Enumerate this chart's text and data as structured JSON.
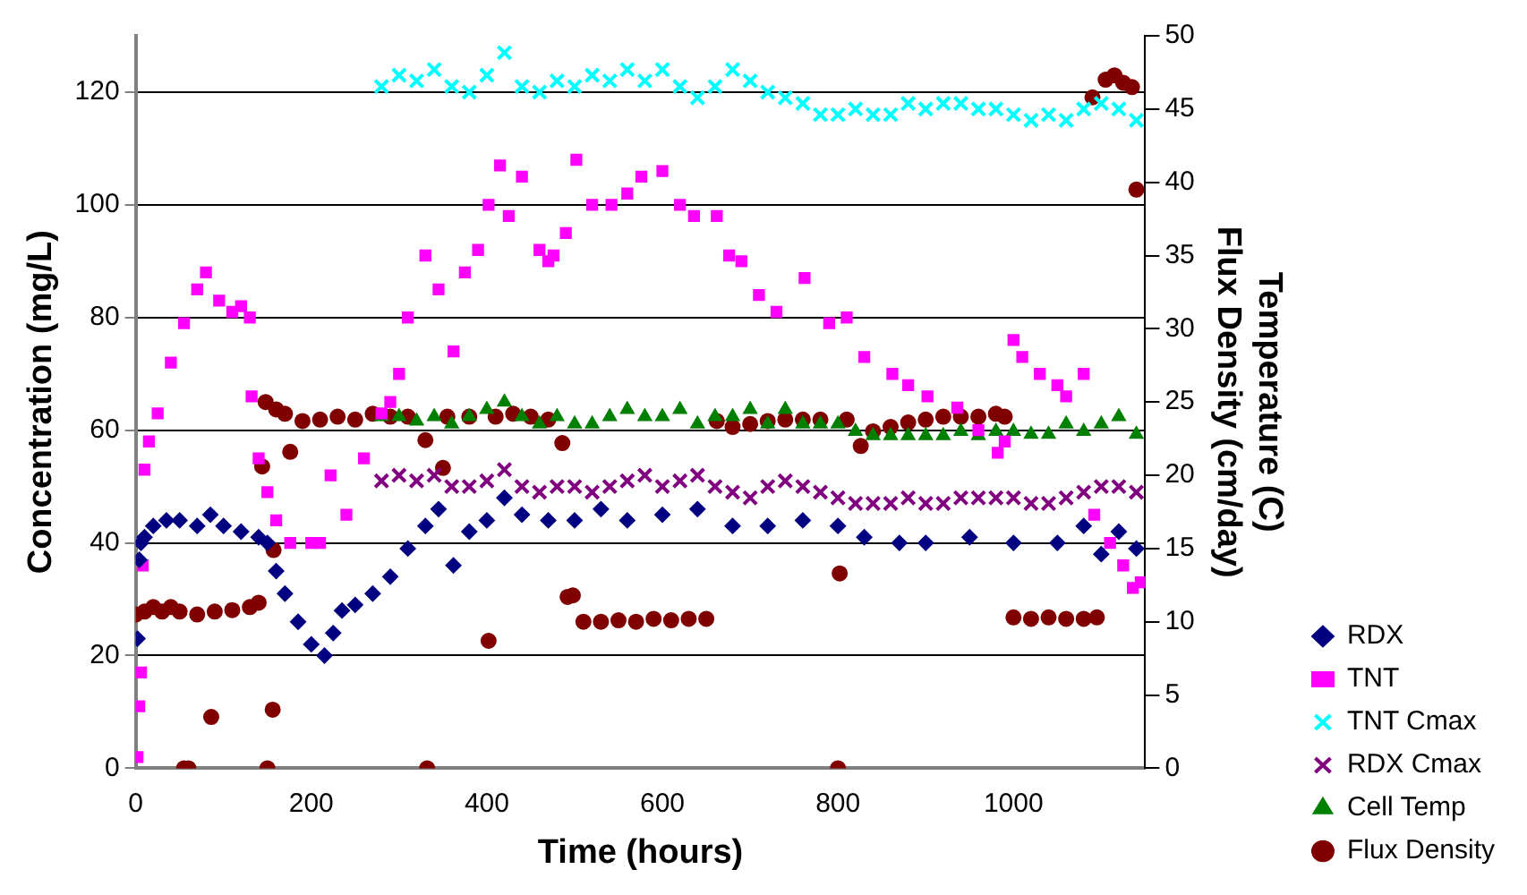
{
  "chart_data": {
    "type": "scatter",
    "xlabel": "Time (hours)",
    "ylabel": "Concentration (mg/L)",
    "y2label": "Temperature (C)\nFlux Density (cm/day)",
    "xlim": [
      0,
      1150
    ],
    "xticks": [
      0,
      200,
      400,
      600,
      800,
      1000
    ],
    "ylim": [
      0,
      130
    ],
    "yticks": [
      0,
      20,
      40,
      60,
      80,
      100,
      120
    ],
    "y2lim": [
      0,
      50
    ],
    "y2ticks": [
      0,
      5,
      10,
      15,
      20,
      25,
      30,
      35,
      40,
      45,
      50
    ],
    "grid": "y",
    "legend": "bottom right",
    "series": [
      {
        "name": "RDX",
        "color": "#000080",
        "marker": "diamond",
        "x": [
          2,
          4,
          6,
          10,
          20,
          35,
          50,
          70,
          85,
          100,
          120,
          140,
          150,
          160,
          170,
          185,
          200,
          215,
          225,
          235,
          250,
          270,
          290,
          310,
          330,
          345,
          362,
          380,
          400,
          420,
          440,
          470,
          500,
          530,
          560,
          600,
          640,
          680,
          720,
          760,
          800,
          830,
          870,
          900,
          950,
          1000,
          1050,
          1080,
          1100,
          1120,
          1140
        ],
        "values": [
          23,
          37,
          40,
          41,
          43,
          44,
          44,
          43,
          45,
          43,
          42,
          41,
          40,
          35,
          31,
          26,
          22,
          20,
          24,
          28,
          29,
          31,
          34,
          39,
          43,
          46,
          36,
          42,
          44,
          48,
          45,
          44,
          44,
          46,
          44,
          45,
          46,
          43,
          43,
          44,
          43,
          41,
          40,
          40,
          41,
          40,
          40,
          43,
          38,
          42,
          39
        ]
      },
      {
        "name": "TNT",
        "color": "#ff00ff",
        "marker": "square",
        "x": [
          2,
          4,
          6,
          8,
          10,
          15,
          25,
          40,
          55,
          70,
          80,
          95,
          110,
          120,
          130,
          132,
          140,
          150,
          160,
          176,
          200,
          210,
          222,
          240,
          260,
          280,
          290,
          300,
          310,
          330,
          345,
          362,
          375,
          390,
          402,
          415,
          425,
          440,
          460,
          470,
          476,
          490,
          502,
          520,
          542,
          560,
          576,
          600,
          620,
          636,
          662,
          676,
          690,
          710,
          730,
          762,
          790,
          810,
          830,
          862,
          880,
          902,
          936,
          960,
          982,
          990,
          1000,
          1010,
          1030,
          1050,
          1060,
          1080,
          1092,
          1110,
          1125,
          1136,
          1145
        ],
        "values": [
          2,
          11,
          17,
          36,
          53,
          58,
          63,
          72,
          79,
          85,
          88,
          83,
          81,
          82,
          80,
          66,
          55,
          49,
          44,
          40,
          40,
          40,
          52,
          45,
          55,
          63,
          65,
          70,
          80,
          91,
          85,
          74,
          88,
          92,
          100,
          107,
          98,
          105,
          92,
          90,
          91,
          95,
          108,
          100,
          100,
          102,
          105,
          106,
          100,
          98,
          98,
          91,
          90,
          84,
          81,
          87,
          79,
          80,
          73,
          70,
          68,
          66,
          64,
          60,
          56,
          58,
          76,
          73,
          70,
          68,
          66,
          70,
          45,
          40,
          36,
          32,
          33
        ]
      },
      {
        "name": "TNT Cmax",
        "color": "#00ffff",
        "marker": "cross",
        "x": [
          280,
          300,
          320,
          340,
          360,
          380,
          400,
          420,
          440,
          460,
          480,
          500,
          520,
          540,
          560,
          580,
          600,
          620,
          640,
          660,
          680,
          700,
          720,
          740,
          760,
          780,
          800,
          820,
          840,
          860,
          880,
          900,
          920,
          940,
          960,
          980,
          1000,
          1020,
          1040,
          1060,
          1080,
          1100,
          1120,
          1140
        ],
        "values": [
          121,
          123,
          122,
          124,
          121,
          120,
          123,
          127,
          121,
          120,
          122,
          121,
          123,
          122,
          124,
          122,
          124,
          121,
          119,
          121,
          124,
          122,
          120,
          119,
          118,
          116,
          116,
          117,
          116,
          116,
          118,
          117,
          118,
          118,
          117,
          117,
          116,
          115,
          116,
          115,
          117,
          118,
          117,
          115
        ]
      },
      {
        "name": "RDX Cmax",
        "color": "#800080",
        "marker": "cross",
        "x": [
          280,
          300,
          320,
          340,
          360,
          380,
          400,
          420,
          440,
          460,
          480,
          500,
          520,
          540,
          560,
          580,
          600,
          620,
          640,
          660,
          680,
          700,
          720,
          740,
          760,
          780,
          800,
          820,
          840,
          860,
          880,
          900,
          920,
          940,
          960,
          980,
          1000,
          1020,
          1040,
          1060,
          1080,
          1100,
          1120,
          1140
        ],
        "values": [
          51,
          52,
          51,
          52,
          50,
          50,
          51,
          53,
          50,
          49,
          50,
          50,
          49,
          50,
          51,
          52,
          50,
          51,
          52,
          50,
          49,
          48,
          50,
          51,
          50,
          49,
          48,
          47,
          47,
          47,
          48,
          47,
          47,
          48,
          48,
          48,
          48,
          47,
          47,
          48,
          49,
          50,
          50,
          49
        ]
      },
      {
        "name": "Cell Temp",
        "color": "#008000",
        "marker": "triangle",
        "axis": "y2",
        "x": [
          280,
          300,
          320,
          340,
          360,
          380,
          400,
          420,
          440,
          460,
          480,
          500,
          520,
          540,
          560,
          580,
          600,
          620,
          640,
          660,
          680,
          700,
          720,
          740,
          760,
          780,
          800,
          820,
          840,
          860,
          880,
          900,
          920,
          940,
          960,
          980,
          1000,
          1020,
          1040,
          1060,
          1080,
          1100,
          1120,
          1140
        ],
        "values": [
          24,
          24,
          23.7,
          24,
          23.5,
          24,
          24.5,
          25,
          24,
          23.5,
          24,
          23.5,
          23.5,
          24,
          24.5,
          24,
          24,
          24.5,
          23.5,
          24,
          24,
          24.5,
          23.5,
          24.5,
          23.5,
          23.5,
          23.5,
          23,
          22.7,
          22.7,
          22.7,
          22.7,
          22.7,
          23,
          22.7,
          23,
          23,
          22.8,
          22.8,
          23.5,
          23,
          23.5,
          24,
          22.8
        ]
      },
      {
        "name": "Flux Density",
        "color": "#800000",
        "marker": "circle",
        "axis": "y2",
        "x": [
          0,
          10,
          20,
          30,
          40,
          50,
          55,
          60,
          70,
          86,
          90,
          110,
          130,
          140,
          144,
          148,
          150,
          156,
          157,
          160,
          170,
          176,
          190,
          210,
          230,
          250,
          270,
          290,
          310,
          330,
          332,
          350,
          355,
          380,
          402,
          410,
          430,
          450,
          470,
          486,
          492,
          498,
          510,
          530,
          550,
          570,
          590,
          610,
          630,
          650,
          662,
          680,
          700,
          720,
          740,
          760,
          780,
          800,
          802,
          810,
          826,
          840,
          860,
          880,
          900,
          920,
          940,
          960,
          980,
          990,
          1000,
          1020,
          1040,
          1060,
          1080,
          1095,
          1090,
          1105,
          1115,
          1125,
          1135,
          1140
        ],
        "values": [
          10.5,
          10.7,
          11,
          10.7,
          11,
          10.7,
          0,
          0,
          10.5,
          3.5,
          10.7,
          10.8,
          11,
          11.3,
          20.6,
          25,
          0,
          4,
          14.9,
          24.5,
          24.2,
          21.6,
          23.7,
          23.8,
          24,
          23.8,
          24.2,
          24,
          24,
          22.4,
          0,
          20.5,
          24,
          24,
          8.7,
          24,
          24.2,
          24,
          23.8,
          22.2,
          11.7,
          11.8,
          10,
          10,
          10.1,
          10,
          10.2,
          10.1,
          10.2,
          10.2,
          23.7,
          23.3,
          23.5,
          23.7,
          23.8,
          23.8,
          23.8,
          0,
          13.3,
          23.8,
          22,
          23,
          23.3,
          23.6,
          23.8,
          24,
          24,
          24,
          24.2,
          24,
          10.3,
          10.2,
          10.3,
          10.2,
          10.2,
          10.3,
          45.8,
          47,
          47.3,
          46.8,
          46.5,
          39.5
        ]
      }
    ]
  }
}
